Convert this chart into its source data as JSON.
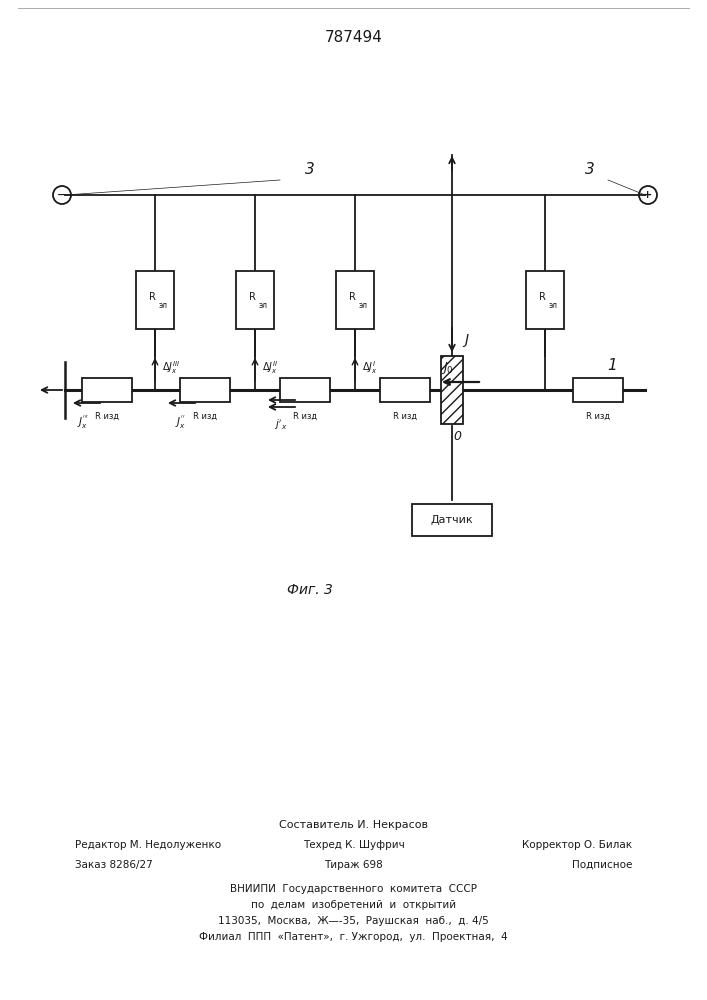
{
  "title": "787494",
  "fig_label": "Фиг. 3",
  "background_color": "#ffffff",
  "line_color": "#1a1a1a",
  "footer": {
    "line0_center": "Составитель И. Некрасов",
    "line1_left": "Редактор М. Недолуженко",
    "line1_center": "Техред К. Шуфрич",
    "line1_right": "Корректор О. Билак",
    "line2_left": "Заказ 8286/27",
    "line2_center": "Тираж 698",
    "line2_right": "Подписное",
    "vniip1": "ВНИИПИ  Государственного  комитета  СССР",
    "vniip2": "по  делам  изобретений  и  открытий",
    "vniip3": "113035,  Москва,  Ж—-35,  Раушская  наб.,  д. 4/5",
    "vniip4": "Филиал  ППП  «Патент»,  г. Ужгород,  ул.  Проектная,  4"
  }
}
